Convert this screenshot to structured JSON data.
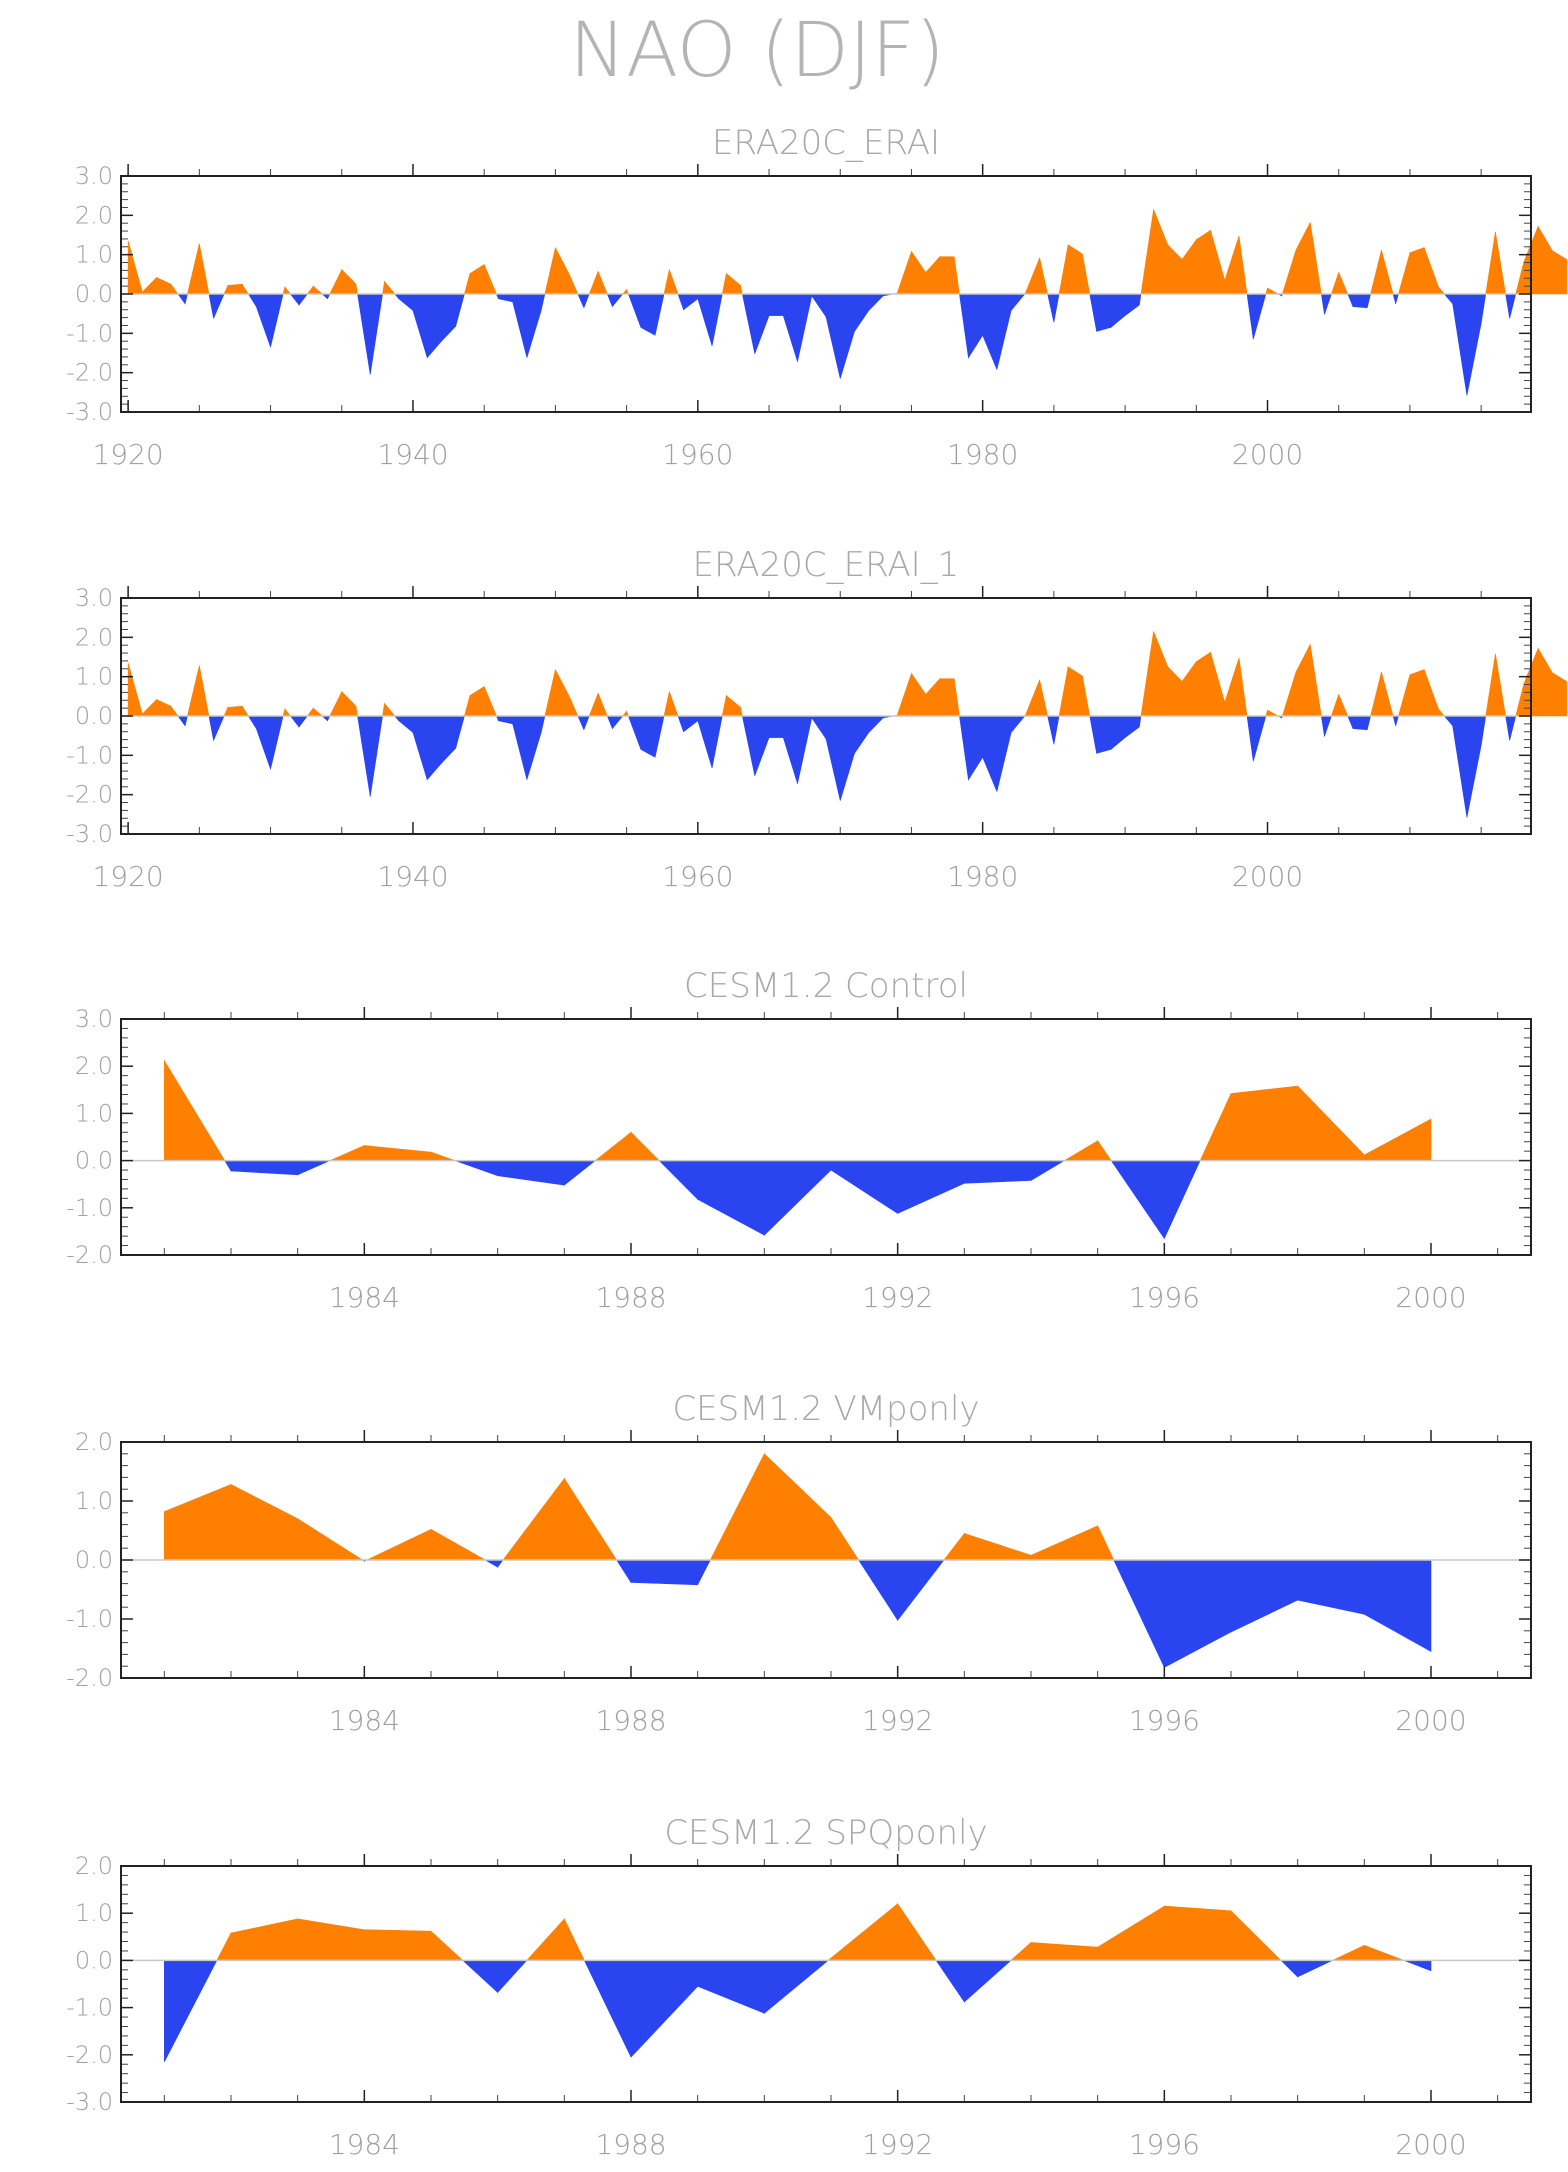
{
  "figure": {
    "title": "NAO (DJF)"
  },
  "colors": {
    "positive": "#FF8000",
    "negative": "#2A45F0",
    "frame": "#222222",
    "zero_line": "#c8c8c8",
    "text": "#a0a0a0"
  },
  "chart_data": [
    {
      "type": "area",
      "title": "ERA20C_ERAI",
      "xlim": [
        1919.5,
        2018.5
      ],
      "ylim": [
        -3,
        3
      ],
      "yticks": [
        -3,
        -2,
        -1,
        0,
        1,
        2,
        3
      ],
      "ytick_labels": [
        "-3.0",
        "-2.0",
        "-1.0",
        "0.0",
        "1.0",
        "2.0",
        "3.0"
      ],
      "xticks": [
        1920,
        1940,
        1960,
        1980,
        2000
      ],
      "xtick_labels": [
        "1920",
        "1940",
        "1960",
        "1980",
        "2000"
      ],
      "x_start": 1920,
      "values": [
        1.35,
        0.05,
        0.42,
        0.25,
        -0.25,
        1.28,
        -0.62,
        0.22,
        0.25,
        -0.32,
        -1.35,
        0.18,
        -0.28,
        0.2,
        -0.12,
        0.62,
        0.25,
        -2.05,
        0.32,
        -0.12,
        -0.42,
        -1.62,
        -1.2,
        -0.82,
        0.52,
        0.75,
        -0.12,
        -0.2,
        -1.62,
        -0.42,
        1.18,
        0.48,
        -0.35,
        0.58,
        -0.32,
        0.12,
        -0.85,
        -1.05,
        0.62,
        -0.4,
        -0.12,
        -1.32,
        0.52,
        0.22,
        -1.52,
        -0.55,
        -0.55,
        -1.72,
        -0.05,
        -0.58,
        -2.15,
        -0.95,
        -0.42,
        -0.05,
        0.02,
        1.08,
        0.55,
        0.95,
        0.95,
        -1.62,
        -1.05,
        -1.92,
        -0.42,
        0.02,
        0.92,
        -0.72,
        1.25,
        1.02,
        -0.95,
        -0.85,
        -0.55,
        -0.28,
        2.15,
        1.25,
        0.88,
        1.38,
        1.62,
        0.35,
        1.48,
        -1.15,
        0.15,
        -0.05,
        1.12,
        1.82,
        -0.52,
        0.55,
        -0.32,
        -0.35,
        1.12,
        -0.25,
        1.05,
        1.18,
        0.18,
        -0.25,
        -2.58,
        -0.75,
        1.58,
        -0.62,
        0.82,
        1.72,
        1.1,
        0.88
      ]
    },
    {
      "type": "area",
      "title": "ERA20C_ERAI_1",
      "xlim": [
        1919.5,
        2018.5
      ],
      "ylim": [
        -3,
        3
      ],
      "yticks": [
        -3,
        -2,
        -1,
        0,
        1,
        2,
        3
      ],
      "ytick_labels": [
        "-3.0",
        "-2.0",
        "-1.0",
        "0.0",
        "1.0",
        "2.0",
        "3.0"
      ],
      "xticks": [
        1920,
        1940,
        1960,
        1980,
        2000
      ],
      "xtick_labels": [
        "1920",
        "1940",
        "1960",
        "1980",
        "2000"
      ],
      "x_start": 1920,
      "values": [
        1.35,
        0.05,
        0.42,
        0.25,
        -0.25,
        1.28,
        -0.62,
        0.22,
        0.25,
        -0.32,
        -1.35,
        0.18,
        -0.28,
        0.2,
        -0.12,
        0.62,
        0.25,
        -2.05,
        0.32,
        -0.12,
        -0.42,
        -1.62,
        -1.2,
        -0.82,
        0.52,
        0.75,
        -0.12,
        -0.2,
        -1.62,
        -0.42,
        1.18,
        0.48,
        -0.35,
        0.58,
        -0.32,
        0.12,
        -0.85,
        -1.05,
        0.62,
        -0.4,
        -0.12,
        -1.32,
        0.52,
        0.22,
        -1.52,
        -0.55,
        -0.55,
        -1.72,
        -0.05,
        -0.58,
        -2.15,
        -0.95,
        -0.42,
        -0.05,
        0.02,
        1.08,
        0.55,
        0.95,
        0.95,
        -1.62,
        -1.05,
        -1.92,
        -0.42,
        0.02,
        0.92,
        -0.72,
        1.25,
        1.02,
        -0.95,
        -0.85,
        -0.55,
        -0.28,
        2.15,
        1.25,
        0.88,
        1.38,
        1.62,
        0.35,
        1.48,
        -1.15,
        0.15,
        -0.05,
        1.12,
        1.82,
        -0.52,
        0.55,
        -0.32,
        -0.35,
        1.12,
        -0.25,
        1.05,
        1.18,
        0.18,
        -0.25,
        -2.58,
        -0.75,
        1.58,
        -0.62,
        0.82,
        1.72,
        1.1,
        0.88
      ]
    },
    {
      "type": "area",
      "title": "CESM1.2 Control",
      "xlim": [
        1980.35,
        2001.5
      ],
      "ylim": [
        -2,
        3
      ],
      "yticks": [
        -2,
        -1,
        0,
        1,
        2,
        3
      ],
      "ytick_labels": [
        "-2.0",
        "-1.0",
        "0.0",
        "1.0",
        "2.0",
        "3.0"
      ],
      "xticks": [
        1984,
        1988,
        1992,
        1996,
        2000
      ],
      "xtick_labels": [
        "1984",
        "1988",
        "1992",
        "1996",
        "2000"
      ],
      "x_start": 1981,
      "values": [
        2.12,
        -0.22,
        -0.3,
        0.32,
        0.18,
        -0.32,
        -0.52,
        0.6,
        -0.82,
        -1.58,
        -0.2,
        -1.12,
        -0.48,
        -0.42,
        0.42,
        -1.65,
        1.42,
        1.58,
        0.12,
        0.88
      ]
    },
    {
      "type": "area",
      "title": "CESM1.2 VMponly",
      "xlim": [
        1980.35,
        2001.5
      ],
      "ylim": [
        -2,
        2
      ],
      "yticks": [
        -2,
        -1,
        0,
        1,
        2
      ],
      "ytick_labels": [
        "-2.0",
        "-1.0",
        "0.0",
        "1.0",
        "2.0"
      ],
      "xticks": [
        1984,
        1988,
        1992,
        1996,
        2000
      ],
      "xtick_labels": [
        "1984",
        "1988",
        "1992",
        "1996",
        "2000"
      ],
      "x_start": 1981,
      "values": [
        0.82,
        1.28,
        0.7,
        -0.02,
        0.52,
        -0.12,
        1.38,
        -0.38,
        -0.42,
        1.8,
        0.72,
        -1.02,
        0.45,
        0.08,
        0.58,
        -1.82,
        -1.22,
        -0.68,
        -0.92,
        -1.55
      ]
    },
    {
      "type": "area",
      "title": "CESM1.2 SPQponly",
      "xlim": [
        1980.35,
        2001.5
      ],
      "ylim": [
        -3,
        2
      ],
      "yticks": [
        -3,
        -2,
        -1,
        0,
        1,
        2
      ],
      "ytick_labels": [
        "-3.0",
        "-2.0",
        "-1.0",
        "0.0",
        "1.0",
        "2.0"
      ],
      "xticks": [
        1984,
        1988,
        1992,
        1996,
        2000
      ],
      "xtick_labels": [
        "1984",
        "1988",
        "1992",
        "1996",
        "2000"
      ],
      "x_start": 1981,
      "values": [
        -2.15,
        0.58,
        0.88,
        0.65,
        0.62,
        -0.68,
        0.88,
        -2.05,
        -0.55,
        -1.12,
        0.05,
        1.2,
        -0.88,
        0.38,
        0.28,
        1.15,
        1.05,
        -0.35,
        0.32,
        -0.22
      ]
    }
  ]
}
